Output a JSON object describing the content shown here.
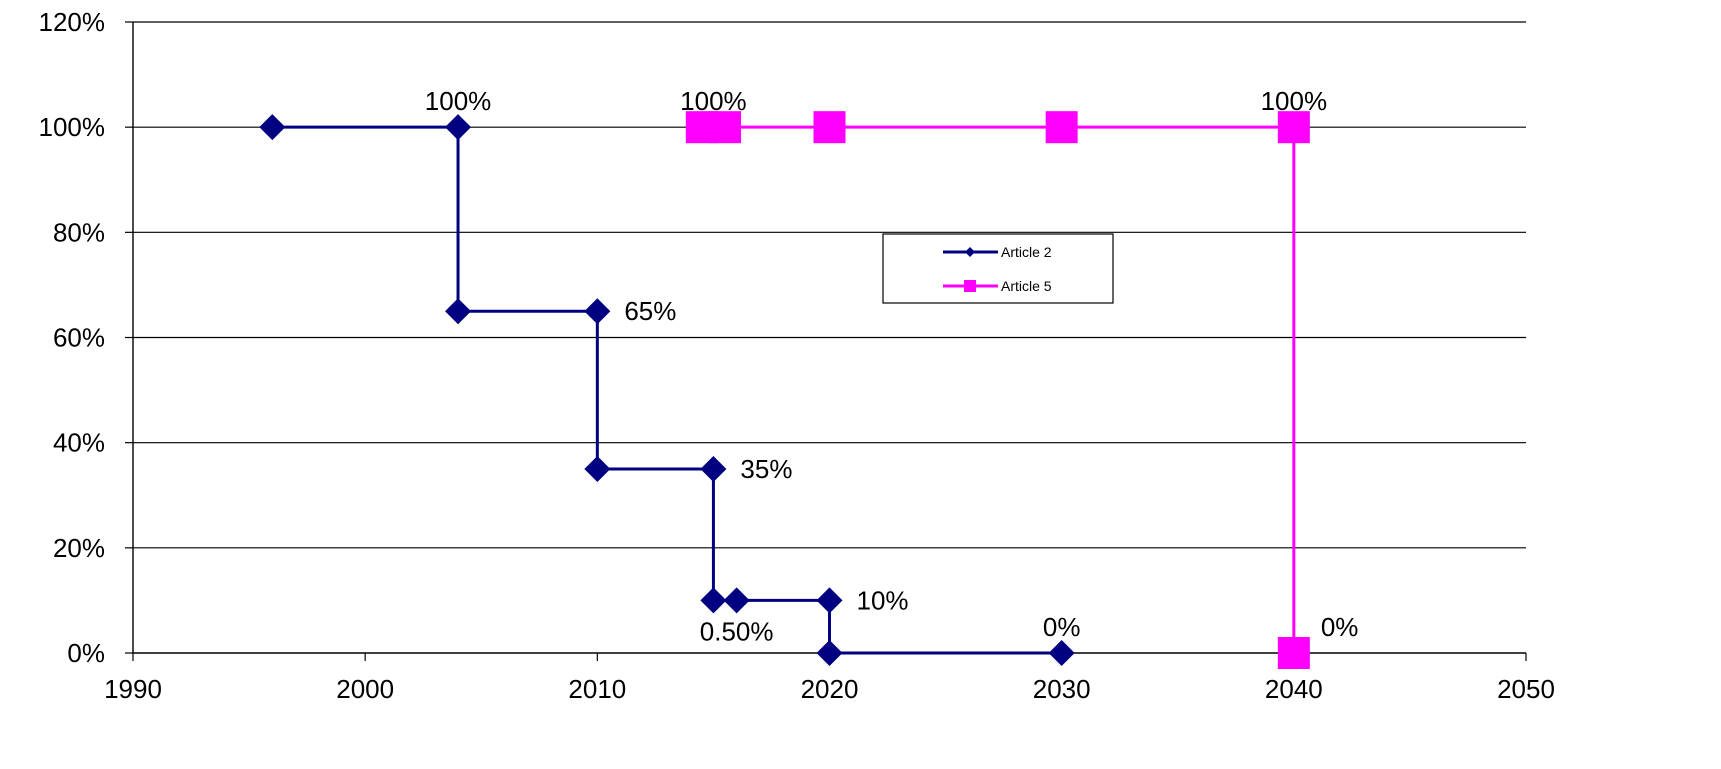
{
  "chart_data": {
    "type": "line",
    "x_range": [
      1990,
      2050
    ],
    "y_range": [
      0,
      120
    ],
    "x_ticks": [
      {
        "value": 1990,
        "label": "1990"
      },
      {
        "value": 2000,
        "label": "2000"
      },
      {
        "value": 2010,
        "label": "2010"
      },
      {
        "value": 2020,
        "label": "2020"
      },
      {
        "value": 2030,
        "label": "2030"
      },
      {
        "value": 2040,
        "label": "2040"
      },
      {
        "value": 2050,
        "label": "2050"
      }
    ],
    "y_ticks": [
      {
        "value": 0,
        "label": "0%"
      },
      {
        "value": 20,
        "label": "20%"
      },
      {
        "value": 40,
        "label": "40%"
      },
      {
        "value": 60,
        "label": "60%"
      },
      {
        "value": 80,
        "label": "80%"
      },
      {
        "value": 100,
        "label": "100%"
      },
      {
        "value": 120,
        "label": "120%"
      }
    ],
    "grid": "horizontal",
    "legend_position": "center-right",
    "series": [
      {
        "name": "Article 2",
        "color": "#000080",
        "marker": "diamond",
        "points": [
          {
            "x": 1996,
            "y": 100
          },
          {
            "x": 2004,
            "y": 100
          },
          {
            "x": 2004,
            "y": 65
          },
          {
            "x": 2010,
            "y": 65
          },
          {
            "x": 2010,
            "y": 35
          },
          {
            "x": 2015,
            "y": 35
          },
          {
            "x": 2015,
            "y": 10
          },
          {
            "x": 2016,
            "y": 10
          },
          {
            "x": 2020,
            "y": 10
          },
          {
            "x": 2020,
            "y": 0
          },
          {
            "x": 2030,
            "y": 0
          }
        ]
      },
      {
        "name": "Article 5",
        "color": "#FF00FF",
        "marker": "square",
        "points": [
          {
            "x": 2014.5,
            "y": 100
          },
          {
            "x": 2015.5,
            "y": 100
          },
          {
            "x": 2020,
            "y": 100
          },
          {
            "x": 2030,
            "y": 100
          },
          {
            "x": 2040,
            "y": 100
          },
          {
            "x": 2040,
            "y": 0
          }
        ]
      }
    ],
    "data_labels": [
      {
        "text": "100%",
        "x": 2004,
        "y": 100,
        "place": "above"
      },
      {
        "text": "65%",
        "x": 2010,
        "y": 65,
        "place": "right"
      },
      {
        "text": "35%",
        "x": 2015,
        "y": 35,
        "place": "right"
      },
      {
        "text": "10%",
        "x": 2020,
        "y": 10,
        "place": "right"
      },
      {
        "text": "0.50%",
        "x": 2016,
        "y": 10,
        "place": "below"
      },
      {
        "text": "0%",
        "x": 2030,
        "y": 0,
        "place": "above"
      },
      {
        "text": "100%",
        "x": 2015,
        "y": 100,
        "place": "above"
      },
      {
        "text": "100%",
        "x": 2040,
        "y": 100,
        "place": "above"
      },
      {
        "text": "0%",
        "x": 2040,
        "y": 0,
        "place": "upper-right"
      }
    ]
  }
}
